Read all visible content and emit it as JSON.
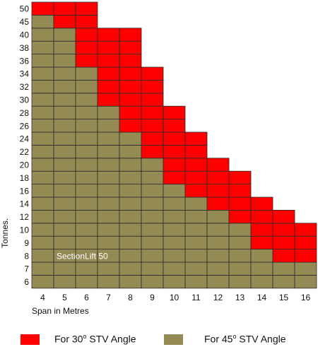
{
  "chart_data": {
    "type": "heatmap",
    "title": "",
    "xlabel": "Span in Metres",
    "ylabel": "Tonnes.",
    "x": [
      4,
      5,
      6,
      7,
      8,
      9,
      10,
      11,
      12,
      13,
      14,
      15,
      16
    ],
    "y": [
      "6",
      "7",
      "8",
      "9",
      "10",
      "12",
      "14",
      "16",
      "18",
      "20",
      "22",
      "24",
      "26",
      "28",
      "30",
      "32",
      "34",
      "36",
      "38",
      "40",
      "45",
      "50"
    ],
    "annotation": "SectionLift 50",
    "series": [
      {
        "name": "For 30° STV Angle",
        "color": "#ff0000",
        "max_tonnes": [
          "50",
          "50",
          "50",
          "40",
          "40",
          "34",
          "28",
          "24",
          "20",
          "18",
          "14",
          "12",
          "10"
        ]
      },
      {
        "name": "For 45° STV Angle",
        "color": "#948a54",
        "max_tonnes": [
          "45",
          "40",
          "34",
          "28",
          "24",
          "20",
          "16",
          "14",
          "12",
          "10",
          "8",
          "7",
          "7"
        ]
      }
    ],
    "grid": true,
    "legend_position": "bottom"
  },
  "colors": {
    "red": "#ff0000",
    "olive": "#948a54",
    "grid": "#2b2b2b"
  },
  "legend": {
    "red_label_prefix": "For 30",
    "red_degree": "o",
    "red_label_suffix": " STV Angle",
    "olive_label_prefix": "For 45",
    "olive_degree": "o",
    "olive_label_suffix": " STV Angle"
  }
}
